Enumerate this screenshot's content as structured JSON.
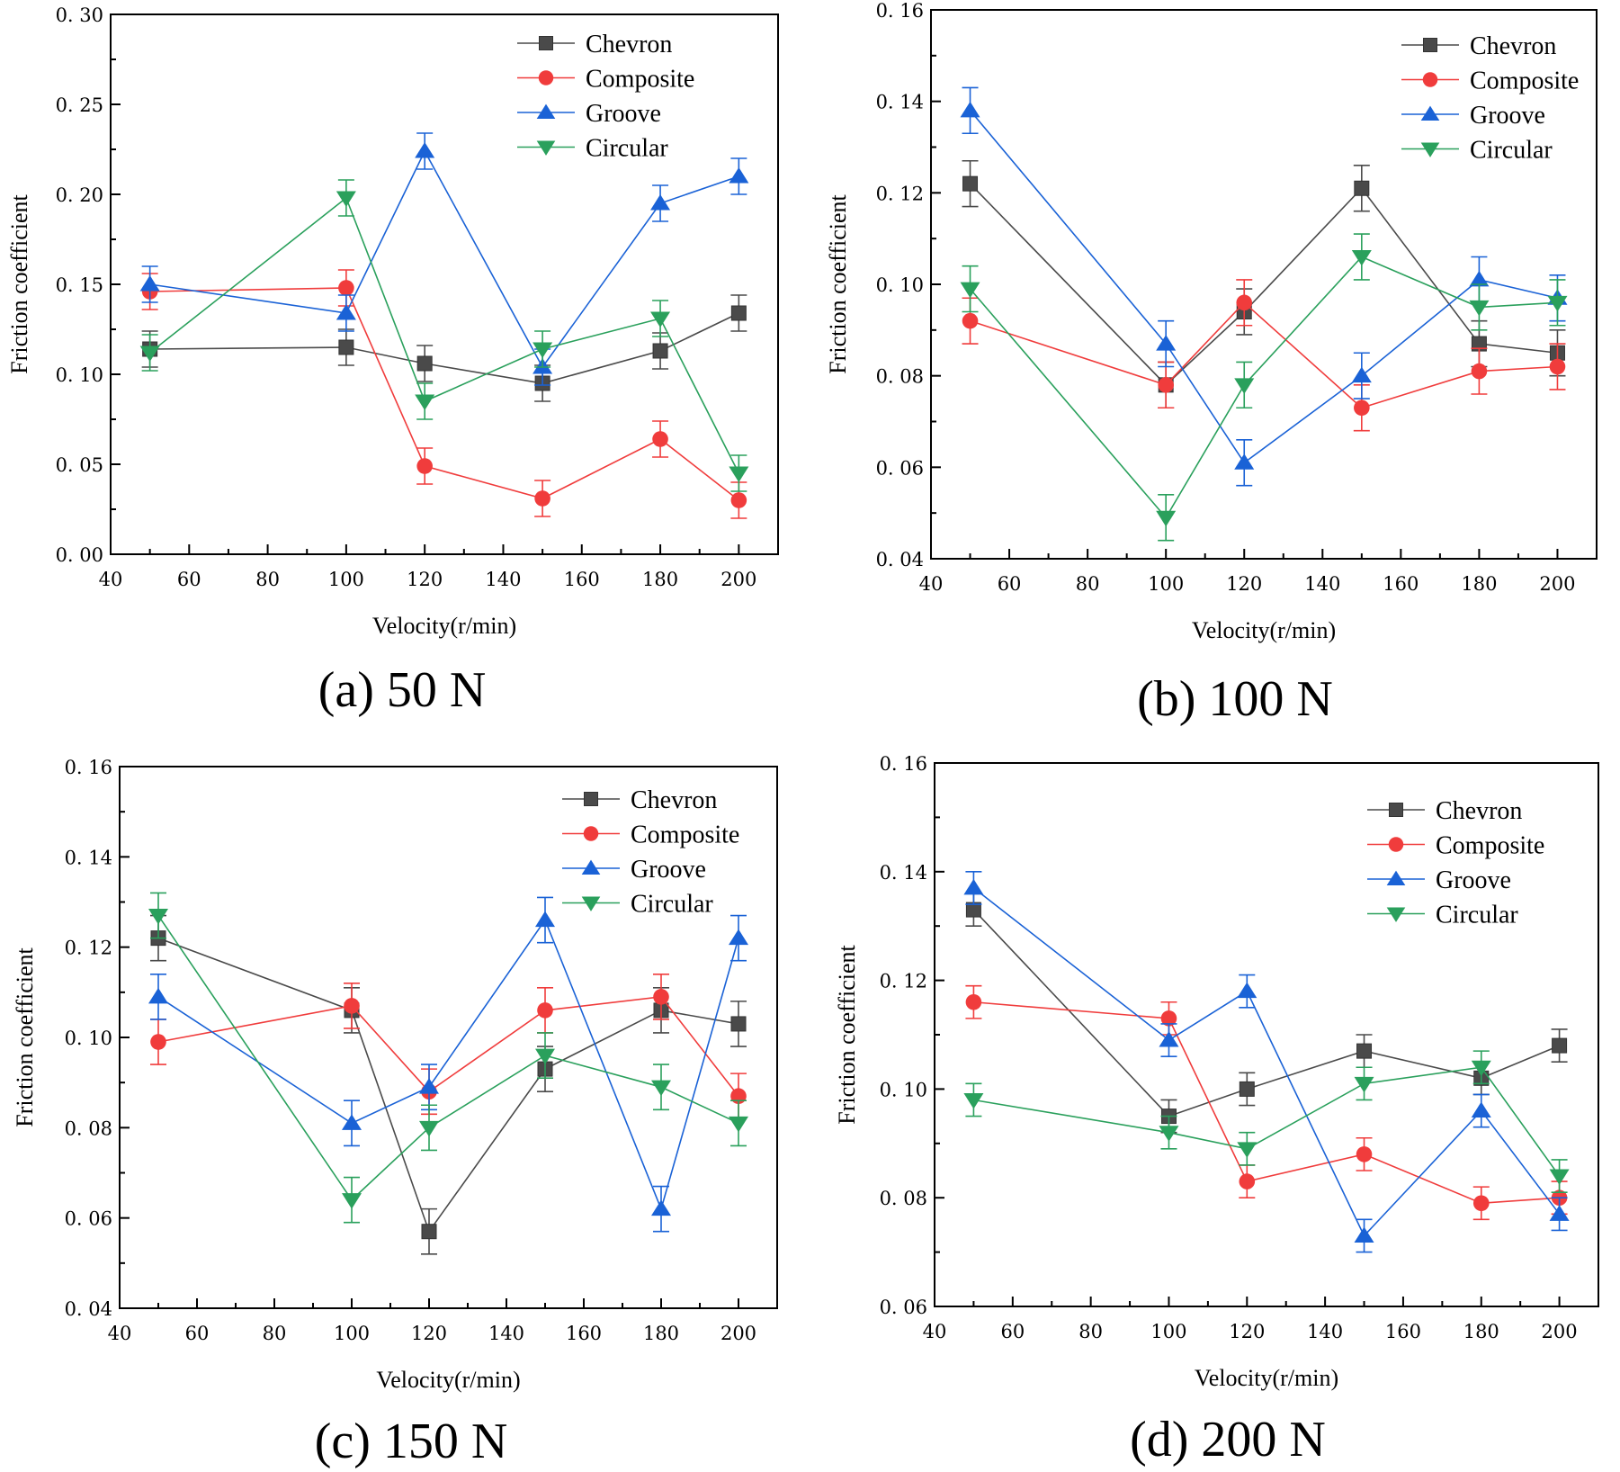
{
  "figure": {
    "panel_labels": [
      "(a) 50 N",
      "(b) 100 N",
      "(c) 150 N",
      "(d) 200 N"
    ]
  },
  "series_styles": [
    {
      "name": "Chevron",
      "color": "#4a4a4a",
      "marker": "square"
    },
    {
      "name": "Composite",
      "color": "#f03c3c",
      "marker": "circle"
    },
    {
      "name": "Groove",
      "color": "#1a62d6",
      "marker": "triangle-up"
    },
    {
      "name": "Circular",
      "color": "#2aa05c",
      "marker": "triangle-down"
    }
  ],
  "chart_data": [
    {
      "type": "line",
      "title": "(a) 50 N",
      "xlabel": "Velocity(r/min)",
      "ylabel": "Friction coefficient",
      "xlim": [
        40,
        210
      ],
      "ylim": [
        0,
        0.3
      ],
      "xticks": [
        40,
        60,
        80,
        100,
        120,
        140,
        160,
        180,
        200
      ],
      "yticks": [
        "0. 00",
        "0. 05",
        "0. 10",
        "0. 15",
        "0. 20",
        "0. 25",
        "0. 30"
      ],
      "ytick_values": [
        0,
        0.05,
        0.1,
        0.15,
        0.2,
        0.25,
        0.3
      ],
      "legend": "top-right",
      "x": [
        50,
        100,
        120,
        150,
        180,
        200
      ],
      "series": [
        {
          "name": "Chevron",
          "values": [
            0.114,
            0.115,
            0.106,
            0.095,
            0.113,
            0.134
          ],
          "error": [
            0.01,
            0.01,
            0.01,
            0.01,
            0.01,
            0.01
          ]
        },
        {
          "name": "Composite",
          "values": [
            0.146,
            0.148,
            0.049,
            0.031,
            0.064,
            0.03
          ],
          "error": [
            0.01,
            0.01,
            0.01,
            0.01,
            0.01,
            0.01
          ]
        },
        {
          "name": "Groove",
          "values": [
            0.15,
            0.134,
            0.224,
            0.104,
            0.195,
            0.21
          ],
          "error": [
            0.01,
            0.01,
            0.01,
            0.01,
            0.01,
            0.01
          ]
        },
        {
          "name": "Circular",
          "values": [
            0.112,
            0.198,
            0.085,
            0.114,
            0.131,
            0.045
          ],
          "error": [
            0.01,
            0.01,
            0.01,
            0.01,
            0.01,
            0.01
          ]
        }
      ]
    },
    {
      "type": "line",
      "title": "(b) 100 N",
      "xlabel": "Velocity(r/min)",
      "ylabel": "Friction coefficient",
      "xlim": [
        40,
        210
      ],
      "ylim": [
        0.04,
        0.16
      ],
      "xticks": [
        40,
        60,
        80,
        100,
        120,
        140,
        160,
        180,
        200
      ],
      "yticks": [
        "0. 04",
        "0. 06",
        "0. 08",
        "0. 10",
        "0. 12",
        "0. 14",
        "0. 16"
      ],
      "ytick_values": [
        0.04,
        0.06,
        0.08,
        0.1,
        0.12,
        0.14,
        0.16
      ],
      "legend": "top-right",
      "x": [
        50,
        100,
        120,
        150,
        180,
        200
      ],
      "series": [
        {
          "name": "Chevron",
          "values": [
            0.122,
            0.078,
            0.094,
            0.121,
            0.087,
            0.085
          ],
          "error": [
            0.005,
            0.005,
            0.005,
            0.005,
            0.005,
            0.005
          ]
        },
        {
          "name": "Composite",
          "values": [
            0.092,
            0.078,
            0.096,
            0.073,
            0.081,
            0.082
          ],
          "error": [
            0.005,
            0.005,
            0.005,
            0.005,
            0.005,
            0.005
          ]
        },
        {
          "name": "Groove",
          "values": [
            0.138,
            0.087,
            0.061,
            0.08,
            0.101,
            0.097
          ],
          "error": [
            0.005,
            0.005,
            0.005,
            0.005,
            0.005,
            0.005
          ]
        },
        {
          "name": "Circular",
          "values": [
            0.099,
            0.049,
            0.078,
            0.106,
            0.095,
            0.096
          ],
          "error": [
            0.005,
            0.005,
            0.005,
            0.005,
            0.005,
            0.005
          ]
        }
      ]
    },
    {
      "type": "line",
      "title": "(c) 150 N",
      "xlabel": "Velocity(r/min)",
      "ylabel": "Friction coefficient",
      "xlim": [
        40,
        210
      ],
      "ylim": [
        0.04,
        0.16
      ],
      "xticks": [
        40,
        60,
        80,
        100,
        120,
        140,
        160,
        180,
        200
      ],
      "yticks": [
        "0. 04",
        "0. 06",
        "0. 08",
        "0. 10",
        "0. 12",
        "0. 14",
        "0. 16"
      ],
      "ytick_values": [
        0.04,
        0.06,
        0.08,
        0.1,
        0.12,
        0.14,
        0.16
      ],
      "legend": "top-right",
      "x": [
        50,
        100,
        120,
        150,
        180,
        200
      ],
      "series": [
        {
          "name": "Chevron",
          "values": [
            0.122,
            0.106,
            0.057,
            0.093,
            0.106,
            0.103
          ],
          "error": [
            0.005,
            0.005,
            0.005,
            0.005,
            0.005,
            0.005
          ]
        },
        {
          "name": "Composite",
          "values": [
            0.099,
            0.107,
            0.088,
            0.106,
            0.109,
            0.087
          ],
          "error": [
            0.005,
            0.005,
            0.005,
            0.005,
            0.005,
            0.005
          ]
        },
        {
          "name": "Groove",
          "values": [
            0.109,
            0.081,
            0.089,
            0.126,
            0.062,
            0.122
          ],
          "error": [
            0.005,
            0.005,
            0.005,
            0.005,
            0.005,
            0.005
          ]
        },
        {
          "name": "Circular",
          "values": [
            0.127,
            0.064,
            0.08,
            0.096,
            0.089,
            0.081
          ],
          "error": [
            0.005,
            0.005,
            0.005,
            0.005,
            0.005,
            0.005
          ]
        }
      ]
    },
    {
      "type": "line",
      "title": "(d) 200 N",
      "xlabel": "Velocity(r/min)",
      "ylabel": "Friction coefficient",
      "xlim": [
        40,
        210
      ],
      "ylim": [
        0.06,
        0.16
      ],
      "xticks": [
        40,
        60,
        80,
        100,
        120,
        140,
        160,
        180,
        200
      ],
      "yticks": [
        "0. 06",
        "0. 08",
        "0. 10",
        "0. 12",
        "0. 14",
        "0. 16"
      ],
      "ytick_values": [
        0.06,
        0.08,
        0.1,
        0.12,
        0.14,
        0.16
      ],
      "legend": "top-right",
      "x": [
        50,
        100,
        120,
        150,
        180,
        200
      ],
      "series": [
        {
          "name": "Chevron",
          "values": [
            0.133,
            0.095,
            0.1,
            0.107,
            0.102,
            0.108
          ],
          "error": [
            0.003,
            0.003,
            0.003,
            0.003,
            0.003,
            0.003
          ]
        },
        {
          "name": "Composite",
          "values": [
            0.116,
            0.113,
            0.083,
            0.088,
            0.079,
            0.08
          ],
          "error": [
            0.003,
            0.003,
            0.003,
            0.003,
            0.003,
            0.003
          ]
        },
        {
          "name": "Groove",
          "values": [
            0.137,
            0.109,
            0.118,
            0.073,
            0.096,
            0.077
          ],
          "error": [
            0.003,
            0.003,
            0.003,
            0.003,
            0.003,
            0.003
          ]
        },
        {
          "name": "Circular",
          "values": [
            0.098,
            0.092,
            0.089,
            0.101,
            0.104,
            0.084
          ],
          "error": [
            0.003,
            0.003,
            0.003,
            0.003,
            0.003,
            0.003
          ]
        }
      ]
    }
  ]
}
